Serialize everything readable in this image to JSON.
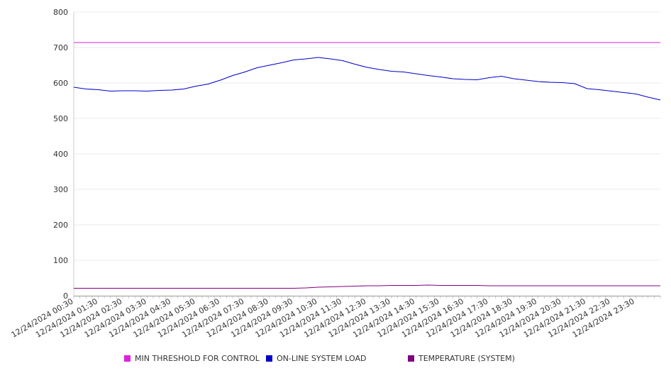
{
  "chart_data": {
    "type": "line",
    "title": "",
    "xlabel": "",
    "ylabel": "",
    "ylim": [
      0,
      800
    ],
    "y_ticks": [
      "0",
      "100",
      "200",
      "300",
      "400",
      "500",
      "600",
      "700",
      "800"
    ],
    "x_ticks": [
      "12/24/2024 00:30",
      "12/24/2024 01:30",
      "12/24/2024 02:30",
      "12/24/2024 03:30",
      "12/24/2024 04:30",
      "12/24/2024 05:30",
      "12/24/2024 06:30",
      "12/24/2024 07:30",
      "12/24/2024 08:30",
      "12/24/2024 09:30",
      "12/24/2024 10:30",
      "12/24/2024 11:30",
      "12/24/2024 12:30",
      "12/24/2024 13:30",
      "12/24/2024 14:30",
      "12/24/2024 15:30",
      "12/24/2024 16:30",
      "12/24/2024 17:30",
      "12/24/2024 18:30",
      "12/24/2024 19:30",
      "12/24/2024 20:30",
      "12/24/2024 21:30",
      "12/24/2024 22:30",
      "12/24/2024 23:30"
    ],
    "x": [
      "00:00",
      "00:30",
      "01:00",
      "01:30",
      "02:00",
      "02:30",
      "03:00",
      "03:30",
      "04:00",
      "04:30",
      "05:00",
      "05:30",
      "06:00",
      "06:30",
      "07:00",
      "07:30",
      "08:00",
      "08:30",
      "09:00",
      "09:30",
      "10:00",
      "10:30",
      "11:00",
      "11:30",
      "12:00",
      "12:30",
      "13:00",
      "13:30",
      "14:00",
      "14:30",
      "15:00",
      "15:30",
      "16:00",
      "16:30",
      "17:00",
      "17:30",
      "18:00",
      "18:30",
      "19:00",
      "19:30",
      "20:00",
      "20:30",
      "21:00",
      "21:30",
      "22:00",
      "22:30",
      "23:00",
      "23:30",
      "23:59"
    ],
    "grid": true,
    "legend_position": "bottom",
    "series": [
      {
        "name": "MIN THRESHOLD FOR CONTROL",
        "color": "#e020e0",
        "values": [
          714,
          714,
          714,
          714,
          714,
          714,
          714,
          714,
          714,
          714,
          714,
          714,
          714,
          714,
          714,
          714,
          714,
          714,
          714,
          714,
          714,
          714,
          714,
          714,
          714,
          714,
          714,
          714,
          714,
          714,
          714,
          714,
          714,
          714,
          714,
          714,
          714,
          714,
          714,
          714,
          714,
          714,
          714,
          714,
          714,
          714,
          714,
          714,
          714
        ]
      },
      {
        "name": "ON-LINE SYSTEM LOAD",
        "color": "#0000cc",
        "values": [
          588,
          583,
          581,
          577,
          578,
          578,
          577,
          579,
          580,
          583,
          591,
          597,
          608,
          621,
          631,
          643,
          650,
          657,
          665,
          668,
          672,
          668,
          663,
          653,
          644,
          638,
          633,
          631,
          626,
          621,
          617,
          612,
          610,
          609,
          615,
          619,
          612,
          608,
          604,
          602,
          601,
          598,
          584,
          581,
          577,
          573,
          569,
          560,
          552
        ]
      },
      {
        "name": "TEMPERATURE (SYSTEM)",
        "color": "#800080",
        "values": [
          21,
          21,
          21,
          21,
          21,
          21,
          21,
          21,
          21,
          21,
          21,
          21,
          21,
          21,
          21,
          21,
          21,
          21,
          21,
          22,
          24,
          25,
          26,
          27,
          28,
          28,
          29,
          29,
          29,
          30,
          29,
          29,
          29,
          29,
          28,
          28,
          28,
          28,
          28,
          28,
          28,
          28,
          28,
          28,
          28,
          28,
          28,
          28,
          28
        ]
      }
    ]
  }
}
